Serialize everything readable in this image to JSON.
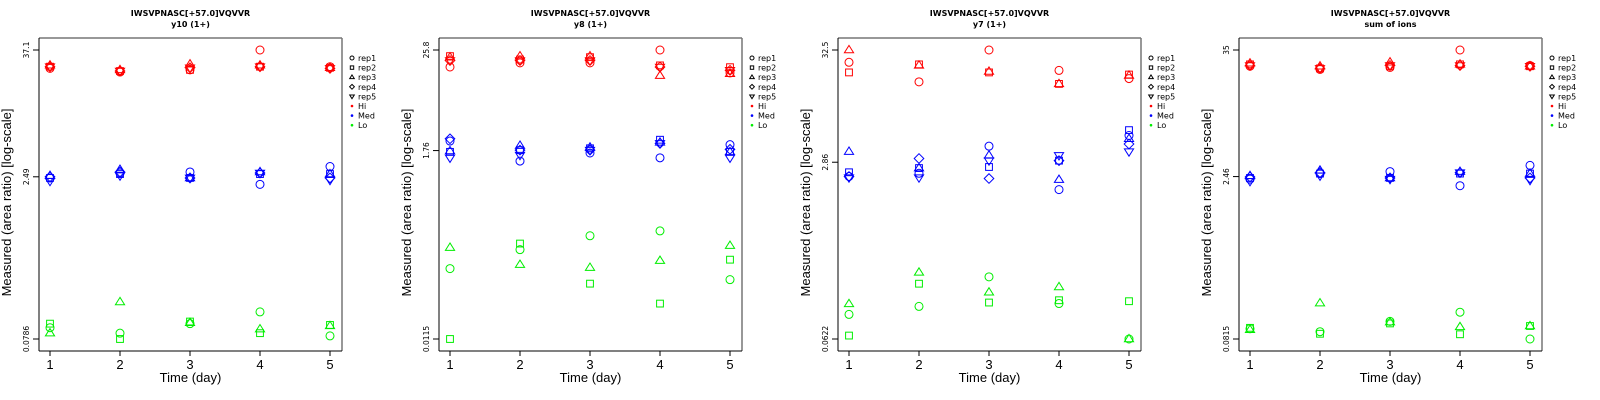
{
  "chart_data": [
    {
      "type": "scatter",
      "title": "IWSVPNASC[+57.0]VQVVR",
      "subtitle": "y10 (1+)",
      "xlabel": "Time (day)",
      "ylabel": "Measured (area ratio) [log-scale]",
      "yscale": "log",
      "x": [
        1,
        2,
        3,
        4,
        5
      ],
      "xticks": [
        "1",
        "2",
        "3",
        "4",
        "5"
      ],
      "yticks": [
        37.1,
        2.49,
        0.0786
      ],
      "ytick_labels": [
        "37.1",
        "2.49",
        "0.0786"
      ],
      "ylim": [
        0.0786,
        37.1
      ],
      "series": [
        {
          "name": "Hi-rep1",
          "group": "Hi",
          "rep": "rep1",
          "values": [
            25.1,
            23.2,
            24.3,
            37.1,
            26.0
          ]
        },
        {
          "name": "Hi-rep2",
          "group": "Hi",
          "rep": "rep2",
          "values": [
            26.0,
            23.7,
            24.3,
            26.0,
            25.4
          ]
        },
        {
          "name": "Hi-rep3",
          "group": "Hi",
          "rep": "rep3",
          "values": [
            26.8,
            24.3,
            27.4,
            26.8,
            25.4
          ]
        },
        {
          "name": "Hi-rep4",
          "group": "Hi",
          "rep": "rep4",
          "values": [
            26.0,
            23.7,
            25.4,
            26.0,
            25.1
          ]
        },
        {
          "name": "Hi-rep5",
          "group": "Hi",
          "rep": "rep5",
          "values": [
            26.0,
            23.7,
            25.4,
            26.0,
            25.1
          ]
        },
        {
          "name": "Med-rep1",
          "group": "Med",
          "rep": "rep1",
          "values": [
            2.43,
            2.7,
            2.76,
            2.12,
            3.1
          ]
        },
        {
          "name": "Med-rep2",
          "group": "Med",
          "rep": "rep2",
          "values": [
            2.43,
            2.64,
            2.43,
            2.64,
            2.64
          ]
        },
        {
          "name": "Med-rep3",
          "group": "Med",
          "rep": "rep3",
          "values": [
            2.55,
            2.9,
            2.43,
            2.76,
            2.64
          ]
        },
        {
          "name": "Med-rep4",
          "group": "Med",
          "rep": "rep4",
          "values": [
            2.49,
            2.76,
            2.43,
            2.7,
            2.43
          ]
        },
        {
          "name": "Med-rep5",
          "group": "Med",
          "rep": "rep5",
          "values": [
            2.27,
            2.55,
            2.43,
            2.7,
            2.32
          ]
        },
        {
          "name": "Lo-rep1",
          "group": "Lo",
          "rep": "rep1",
          "values": [
            0.1,
            0.089,
            0.109,
            0.14,
            0.084
          ]
        },
        {
          "name": "Lo-rep2",
          "group": "Lo",
          "rep": "rep2",
          "values": [
            0.109,
            0.0786,
            0.114,
            0.089,
            0.106
          ]
        },
        {
          "name": "Lo-rep3",
          "group": "Lo",
          "rep": "rep3",
          "values": [
            0.089,
            0.173,
            0.111,
            0.097,
            0.104
          ]
        }
      ]
    },
    {
      "type": "scatter",
      "title": "IWSVPNASC[+57.0]VQVVR",
      "subtitle": "y8 (1+)",
      "xlabel": "Time (day)",
      "ylabel": "Measured (area ratio) [log-scale]",
      "yscale": "log",
      "x": [
        1,
        2,
        3,
        4,
        5
      ],
      "xticks": [
        "1",
        "2",
        "3",
        "4",
        "5"
      ],
      "yticks": [
        25.8,
        1.76,
        0.0115
      ],
      "ytick_labels": [
        "25.8",
        "1.76",
        "0.0115"
      ],
      "ylim": [
        0.0115,
        25.8
      ],
      "series": [
        {
          "name": "Hi-rep1",
          "group": "Hi",
          "rep": "rep1",
          "values": [
            16.4,
            18.3,
            18.3,
            25.8,
            14.0
          ]
        },
        {
          "name": "Hi-rep2",
          "group": "Hi",
          "rep": "rep2",
          "values": [
            21.9,
            20.0,
            21.3,
            17.1,
            16.3
          ]
        },
        {
          "name": "Hi-rep3",
          "group": "Hi",
          "rep": "rep3",
          "values": [
            21.3,
            21.9,
            21.9,
            13.0,
            13.7
          ]
        },
        {
          "name": "Hi-rep4",
          "group": "Hi",
          "rep": "rep4",
          "values": [
            19.5,
            19.5,
            19.5,
            16.4,
            15.0
          ]
        },
        {
          "name": "Hi-rep5",
          "group": "Hi",
          "rep": "rep5",
          "values": [
            19.5,
            19.5,
            19.5,
            16.4,
            15.0
          ]
        },
        {
          "name": "Med-rep1",
          "group": "Med",
          "rep": "rep1",
          "values": [
            2.27,
            1.33,
            1.65,
            1.45,
            2.06
          ]
        },
        {
          "name": "Med-rep2",
          "group": "Med",
          "rep": "rep2",
          "values": [
            1.7,
            1.78,
            1.87,
            2.35,
            1.7
          ]
        },
        {
          "name": "Med-rep3",
          "group": "Med",
          "rep": "rep3",
          "values": [
            1.74,
            2.01,
            1.92,
            2.19,
            1.7
          ]
        },
        {
          "name": "Med-rep4",
          "group": "Med",
          "rep": "rep4",
          "values": [
            2.41,
            1.78,
            1.78,
            2.13,
            1.82
          ]
        },
        {
          "name": "Med-rep5",
          "group": "Med",
          "rep": "rep5",
          "values": [
            1.45,
            1.56,
            1.78,
            2.13,
            1.45
          ]
        },
        {
          "name": "Lo-rep1",
          "group": "Lo",
          "rep": "rep1",
          "values": [
            0.0753,
            0.125,
            0.181,
            0.206,
            0.0561
          ]
        },
        {
          "name": "Lo-rep2",
          "group": "Lo",
          "rep": "rep2",
          "values": [
            0.0115,
            0.147,
            0.0504,
            0.0296,
            0.0956
          ]
        },
        {
          "name": "Lo-rep3",
          "group": "Lo",
          "rep": "rep3",
          "values": [
            0.132,
            0.0837,
            0.0773,
            0.0931,
            0.139
          ]
        }
      ]
    },
    {
      "type": "scatter",
      "title": "IWSVPNASC[+57.0]VQVVR",
      "subtitle": "y7 (1+)",
      "xlabel": "Time (day)",
      "ylabel": "Measured (area ratio) [log-scale]",
      "yscale": "log",
      "x": [
        1,
        2,
        3,
        4,
        5
      ],
      "xticks": [
        "1",
        "2",
        "3",
        "4",
        "5"
      ],
      "yticks": [
        32.5,
        2.86,
        0.0622
      ],
      "ytick_labels": [
        "32.5",
        "2.86",
        "0.0622"
      ],
      "ylim": [
        0.0622,
        32.5
      ],
      "series": [
        {
          "name": "Hi-rep1",
          "group": "Hi",
          "rep": "rep1",
          "values": [
            24.9,
            16.3,
            32.5,
            20.9,
            17.5
          ]
        },
        {
          "name": "Hi-rep2",
          "group": "Hi",
          "rep": "rep2",
          "values": [
            20.0,
            23.8,
            20.0,
            15.6,
            19.1
          ]
        },
        {
          "name": "Hi-rep3",
          "group": "Hi",
          "rep": "rep3",
          "values": [
            32.5,
            23.3,
            20.4,
            15.6,
            18.7
          ]
        },
        {
          "name": "Med-rep1",
          "group": "Med",
          "rep": "rep1",
          "values": [
            2.1,
            2.25,
            4.05,
            1.58,
            5.1
          ]
        },
        {
          "name": "Med-rep2",
          "group": "Med",
          "rep": "rep2",
          "values": [
            2.3,
            2.52,
            2.58,
            2.96,
            5.73
          ]
        },
        {
          "name": "Med-rep3",
          "group": "Med",
          "rep": "rep3",
          "values": [
            3.6,
            2.52,
            3.32,
            1.96,
            4.76
          ]
        },
        {
          "name": "Med-rep4",
          "group": "Med",
          "rep": "rep4",
          "values": [
            2.1,
            3.1,
            2.01,
            2.96,
            4.24
          ]
        },
        {
          "name": "Med-rep5",
          "group": "Med",
          "rep": "rep5",
          "values": [
            2.05,
            2.05,
            2.96,
            3.32,
            3.6
          ]
        },
        {
          "name": "Lo-rep1",
          "group": "Lo",
          "rep": "rep1",
          "values": [
            0.106,
            0.126,
            0.239,
            0.134,
            0.0622
          ]
        },
        {
          "name": "Lo-rep2",
          "group": "Lo",
          "rep": "rep2",
          "values": [
            0.067,
            0.206,
            0.137,
            0.144,
            0.141
          ]
        },
        {
          "name": "Lo-rep3",
          "group": "Lo",
          "rep": "rep3",
          "values": [
            0.133,
            0.263,
            0.171,
            0.192,
            0.0622
          ]
        }
      ]
    },
    {
      "type": "scatter",
      "title": "IWSVPNASC[+57.0]VQVVR",
      "subtitle": "sum of ions",
      "xlabel": "Time (day)",
      "ylabel": "Measured (area ratio) [log-scale]",
      "yscale": "log",
      "x": [
        1,
        2,
        3,
        4,
        5
      ],
      "xticks": [
        "1",
        "2",
        "3",
        "4",
        "5"
      ],
      "yticks": [
        35,
        2.46,
        0.0815
      ],
      "ytick_labels": [
        "35",
        "2.46",
        "0.0815"
      ],
      "ylim": [
        0.0815,
        35
      ],
      "series": [
        {
          "name": "Hi-rep1",
          "group": "Hi",
          "rep": "rep1",
          "values": [
            24.9,
            23.3,
            24.3,
            35.0,
            25.3
          ]
        },
        {
          "name": "Hi-rep2",
          "group": "Hi",
          "rep": "rep2",
          "values": [
            25.9,
            23.8,
            24.9,
            25.9,
            24.9
          ]
        },
        {
          "name": "Hi-rep3",
          "group": "Hi",
          "rep": "rep3",
          "values": [
            26.5,
            24.9,
            27.1,
            25.9,
            24.9
          ]
        },
        {
          "name": "Hi-rep4",
          "group": "Hi",
          "rep": "rep4",
          "values": [
            25.3,
            23.8,
            25.3,
            25.3,
            24.9
          ]
        },
        {
          "name": "Hi-rep5",
          "group": "Hi",
          "rep": "rep5",
          "values": [
            25.3,
            23.8,
            25.3,
            25.3,
            24.9
          ]
        },
        {
          "name": "Med-rep1",
          "group": "Med",
          "rep": "rep1",
          "values": [
            2.33,
            2.62,
            2.73,
            2.03,
            3.11
          ]
        },
        {
          "name": "Med-rep2",
          "group": "Med",
          "rep": "rep2",
          "values": [
            2.39,
            2.62,
            2.39,
            2.62,
            2.62
          ]
        },
        {
          "name": "Med-rep3",
          "group": "Med",
          "rep": "rep3",
          "values": [
            2.5,
            2.8,
            2.39,
            2.73,
            2.62
          ]
        },
        {
          "name": "Med-rep4",
          "group": "Med",
          "rep": "rep4",
          "values": [
            2.44,
            2.67,
            2.39,
            2.67,
            2.39
          ]
        },
        {
          "name": "Med-rep5",
          "group": "Med",
          "rep": "rep5",
          "values": [
            2.23,
            2.5,
            2.33,
            2.67,
            2.28
          ]
        },
        {
          "name": "Lo-rep1",
          "group": "Lo",
          "rep": "rep1",
          "values": [
            0.101,
            0.095,
            0.118,
            0.143,
            0.0815
          ]
        },
        {
          "name": "Lo-rep2",
          "group": "Lo",
          "rep": "rep2",
          "values": [
            0.103,
            0.091,
            0.113,
            0.09,
            0.107
          ]
        },
        {
          "name": "Lo-rep3",
          "group": "Lo",
          "rep": "rep3",
          "values": [
            0.099,
            0.173,
            0.116,
            0.105,
            0.107
          ]
        }
      ]
    }
  ],
  "legend": {
    "placement": "right",
    "reps": [
      {
        "label": "rep1",
        "shape": "circle"
      },
      {
        "label": "rep2",
        "shape": "square"
      },
      {
        "label": "rep3",
        "shape": "triangle"
      },
      {
        "label": "rep4",
        "shape": "diamond"
      },
      {
        "label": "rep5",
        "shape": "triangle-down"
      }
    ],
    "groups": [
      {
        "label": "Hi",
        "color": "#ff0000"
      },
      {
        "label": "Med",
        "color": "#0000ff"
      },
      {
        "label": "Lo",
        "color": "#00ee00"
      }
    ]
  },
  "colors": {
    "Hi": "#ff0000",
    "Med": "#0000ff",
    "Lo": "#00ee00"
  }
}
